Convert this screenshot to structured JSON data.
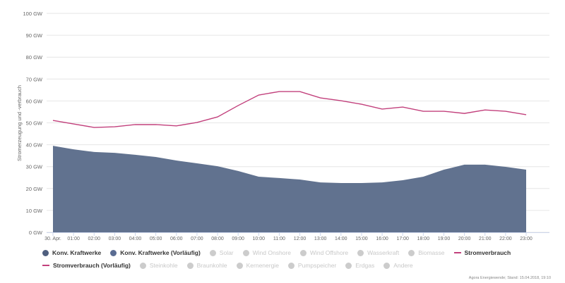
{
  "chart_data": {
    "type": "area",
    "ylabel": "Stromerzeugung und -verbrauch",
    "xlabel": "",
    "ylim": [
      0,
      100
    ],
    "y_ticks": [
      "0 GW",
      "10 GW",
      "20 GW",
      "30 GW",
      "40 GW",
      "50 GW",
      "60 GW",
      "70 GW",
      "80 GW",
      "90 GW",
      "100 GW"
    ],
    "y_tick_values": [
      0,
      10,
      20,
      30,
      40,
      50,
      60,
      70,
      80,
      90,
      100
    ],
    "categories": [
      "30. Apr.",
      "01:00",
      "02:00",
      "03:00",
      "04:00",
      "05:00",
      "06:00",
      "07:00",
      "08:00",
      "09:00",
      "10:00",
      "11:00",
      "12:00",
      "13:00",
      "14:00",
      "15:00",
      "16:00",
      "17:00",
      "18:00",
      "19:00",
      "20:00",
      "21:00",
      "22:00",
      "23:00"
    ],
    "grid": true,
    "legend_placement": "bottom",
    "series": [
      {
        "name": "Konv. Kraftwerke",
        "type": "area",
        "color": "#61728f",
        "values": [
          39.5,
          37.9,
          36.7,
          36.3,
          35.4,
          34.4,
          32.8,
          31.5,
          30.2,
          28.0,
          25.4,
          24.8,
          24.1,
          22.8,
          22.5,
          22.5,
          22.8,
          23.8,
          25.4,
          28.6,
          30.9,
          30.9,
          29.9,
          28.6
        ]
      },
      {
        "name": "Stromverbrauch",
        "type": "line",
        "color": "#c2407c",
        "values": [
          51.1,
          49.5,
          47.9,
          48.2,
          49.2,
          49.2,
          48.6,
          50.2,
          52.7,
          57.9,
          62.7,
          64.3,
          64.3,
          61.4,
          60.1,
          58.5,
          56.3,
          57.2,
          55.3,
          55.3,
          54.3,
          55.9,
          55.3,
          53.7
        ]
      }
    ]
  },
  "legend": {
    "row1": [
      {
        "label": "Konv. Kraftwerke",
        "kind": "dot",
        "color": "#4f5f7f",
        "active": true
      },
      {
        "label": "Konv. Kraftwerke (Vorläufig)",
        "kind": "dot",
        "color": "#5a6c92",
        "active": true
      },
      {
        "label": "Solar",
        "kind": "dot",
        "active": false
      },
      {
        "label": "Wind Onshore",
        "kind": "dot",
        "active": false
      },
      {
        "label": "Wind Offshore",
        "kind": "dot",
        "active": false
      },
      {
        "label": "Wasserkraft",
        "kind": "dot",
        "active": false
      },
      {
        "label": "Biomasse",
        "kind": "dot",
        "active": false
      },
      {
        "label": "Stromverbrauch",
        "kind": "line",
        "active": true
      }
    ],
    "row2": [
      {
        "label": "Stromverbrauch (Vorläufig)",
        "kind": "dash",
        "active": true
      },
      {
        "label": "Steinkohle",
        "kind": "dot",
        "active": false
      },
      {
        "label": "Braunkohle",
        "kind": "dot",
        "active": false
      },
      {
        "label": "Kernenergie",
        "kind": "dot",
        "active": false
      },
      {
        "label": "Pumpspeicher",
        "kind": "dot",
        "active": false
      },
      {
        "label": "Erdgas",
        "kind": "dot",
        "active": false
      },
      {
        "label": "Andere",
        "kind": "dot",
        "active": false
      }
    ]
  },
  "credit": "Agora Energiewende; Stand: 15.04.2018, 19:10"
}
